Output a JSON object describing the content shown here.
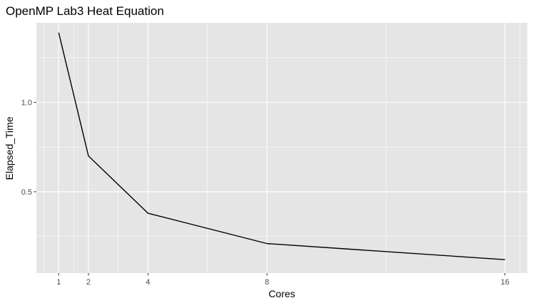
{
  "chart_data": {
    "type": "line",
    "title": "OpenMP Lab3 Heat Equation",
    "xlabel": "Cores",
    "ylabel": "Elapsed_Time",
    "x": [
      1,
      2,
      4,
      8,
      16
    ],
    "series": [
      {
        "values": [
          1.39,
          0.7,
          0.38,
          0.21,
          0.12
        ]
      }
    ],
    "xlim": [
      0.25,
      16.75
    ],
    "ylim": [
      0.045,
      1.445
    ],
    "x_ticks": [
      1,
      2,
      4,
      8,
      16
    ],
    "x_tick_labels": [
      "1",
      "2",
      "4",
      "8",
      "16"
    ],
    "x_minor_ticks": [
      0.5,
      1.5,
      3,
      6,
      12,
      16.5
    ],
    "y_ticks": [
      0.5,
      1.0
    ],
    "y_tick_labels": [
      "0.5",
      "1.0"
    ],
    "y_minor_ticks": [
      0.25,
      0.75,
      1.25
    ],
    "grid": true,
    "legend": "none",
    "colors": {
      "panel_background": "#e5e5e5",
      "grid": "#ffffff",
      "line": "#000000",
      "tick_mark": "#333333",
      "tick_label": "#4d4d4d"
    }
  }
}
